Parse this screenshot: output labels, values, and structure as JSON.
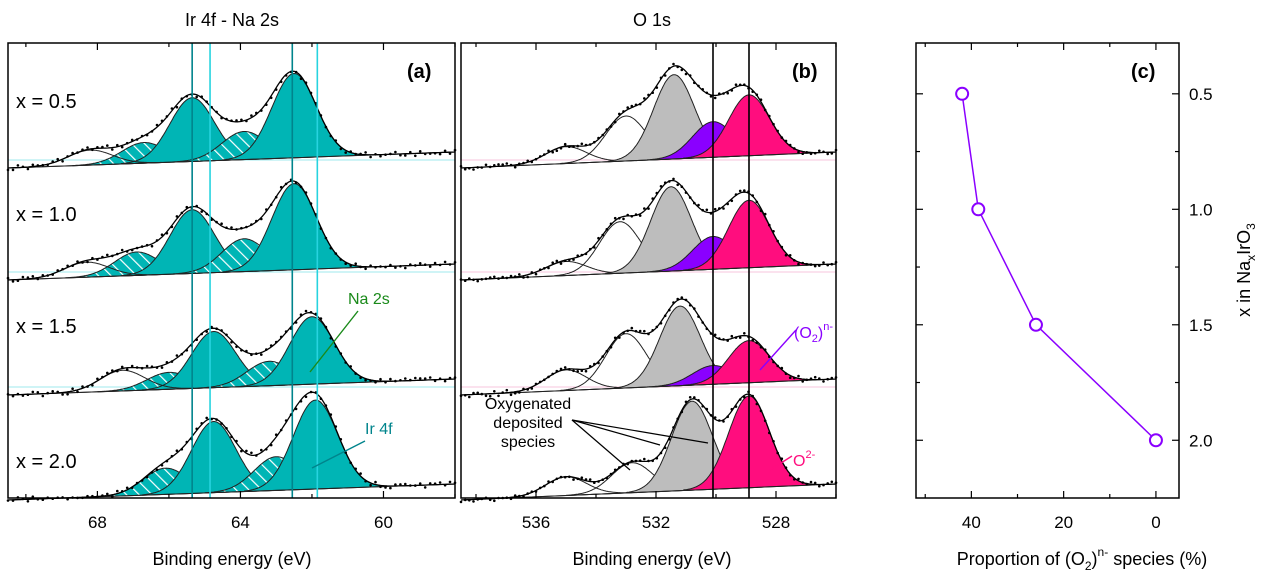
{
  "colors": {
    "ir": "#00b5b5",
    "o2minus": "#ff0d7e",
    "peroxo": "#8a00ff",
    "deposited": "#bdbdbd",
    "na": "#1a8a1a",
    "guide_cyan": "#27d3df",
    "guide_teal": "#00848c"
  },
  "chart_data": [
    {
      "type": "line",
      "panel_label": "(a)",
      "title": "Ir 4f - Na 2s",
      "xlabel": "Binding energy (eV)",
      "xlim": [
        70.5,
        58
      ],
      "xticks": [
        68,
        64,
        60
      ],
      "tick_labels": [
        "68",
        "64",
        "60"
      ],
      "guide_lines_eV": [
        65.35,
        64.85,
        62.55,
        61.85
      ],
      "series": [
        {
          "name": "x = 0.5",
          "peaks": [
            {
              "center": 66.7,
              "height": 0.22,
              "color": "ir",
              "hatched": true
            },
            {
              "center": 65.35,
              "height": 0.68,
              "color": "ir",
              "hatched": false
            },
            {
              "center": 63.9,
              "height": 0.3,
              "color": "ir",
              "hatched": true
            },
            {
              "center": 62.5,
              "height": 0.9,
              "color": "ir",
              "hatched": false
            },
            {
              "center": 68.2,
              "height": 0.16,
              "color": "none",
              "hatched": false
            }
          ]
        },
        {
          "name": "x = 1.0",
          "peaks": [
            {
              "center": 66.9,
              "height": 0.25,
              "color": "ir",
              "hatched": true
            },
            {
              "center": 65.35,
              "height": 0.68,
              "color": "ir",
              "hatched": false
            },
            {
              "center": 63.9,
              "height": 0.35,
              "color": "ir",
              "hatched": true
            },
            {
              "center": 62.5,
              "height": 0.92,
              "color": "ir",
              "hatched": false
            },
            {
              "center": 68.3,
              "height": 0.16,
              "color": "none",
              "hatched": false
            }
          ]
        },
        {
          "name": "x = 1.5",
          "peaks": [
            {
              "center": 66.0,
              "height": 0.18,
              "color": "ir",
              "hatched": true
            },
            {
              "center": 64.75,
              "height": 0.6,
              "color": "ir",
              "hatched": false
            },
            {
              "center": 63.2,
              "height": 0.26,
              "color": "ir",
              "hatched": true
            },
            {
              "center": 62.0,
              "height": 0.72,
              "color": "ir",
              "hatched": false
            },
            {
              "center": 67.3,
              "height": 0.22,
              "color": "none",
              "hatched": false
            }
          ]
        },
        {
          "name": "x = 2.0",
          "peaks": [
            {
              "center": 66.1,
              "height": 0.28,
              "color": "ir",
              "hatched": true
            },
            {
              "center": 64.75,
              "height": 0.76,
              "color": "ir",
              "hatched": false
            },
            {
              "center": 63.0,
              "height": 0.36,
              "color": "ir",
              "hatched": true
            },
            {
              "center": 61.9,
              "height": 0.95,
              "color": "ir",
              "hatched": false
            }
          ]
        }
      ],
      "annotations": [
        "Na 2s",
        "Ir 4f"
      ]
    },
    {
      "type": "line",
      "panel_label": "(b)",
      "title": "O 1s",
      "xlabel": "Binding energy (eV)",
      "xlim": [
        538.5,
        526
      ],
      "xticks": [
        536,
        532,
        528
      ],
      "tick_labels": [
        "536",
        "532",
        "528"
      ],
      "guide_lines_eV": [
        530.1,
        528.9
      ],
      "series": [
        {
          "name": "x = 0.5",
          "peaks": [
            {
              "center": 535.0,
              "height": 0.18,
              "color": "none"
            },
            {
              "center": 533.0,
              "height": 0.48,
              "color": "none"
            },
            {
              "center": 531.4,
              "height": 0.9,
              "color": "deposited"
            },
            {
              "center": 530.1,
              "height": 0.38,
              "color": "peroxo"
            },
            {
              "center": 528.9,
              "height": 0.65,
              "color": "o2minus"
            }
          ]
        },
        {
          "name": "x = 1.0",
          "peaks": [
            {
              "center": 535.0,
              "height": 0.15,
              "color": "none"
            },
            {
              "center": 533.2,
              "height": 0.55,
              "color": "none"
            },
            {
              "center": 531.5,
              "height": 0.9,
              "color": "deposited"
            },
            {
              "center": 530.1,
              "height": 0.35,
              "color": "peroxo"
            },
            {
              "center": 528.9,
              "height": 0.72,
              "color": "o2minus"
            }
          ]
        },
        {
          "name": "x = 1.5",
          "peaks": [
            {
              "center": 535.0,
              "height": 0.22,
              "color": "none"
            },
            {
              "center": 533.0,
              "height": 0.58,
              "color": "none"
            },
            {
              "center": 531.2,
              "height": 0.85,
              "color": "deposited"
            },
            {
              "center": 530.1,
              "height": 0.2,
              "color": "peroxo"
            },
            {
              "center": 528.9,
              "height": 0.45,
              "color": "o2minus"
            }
          ]
        },
        {
          "name": "x = 2.0",
          "peaks": [
            {
              "center": 535.0,
              "height": 0.2,
              "color": "none"
            },
            {
              "center": 532.8,
              "height": 0.32,
              "color": "none"
            },
            {
              "center": 530.8,
              "height": 0.95,
              "color": "deposited"
            },
            {
              "center": 528.9,
              "height": 0.98,
              "color": "o2minus"
            }
          ]
        }
      ],
      "annotations": [
        "Oxygenated",
        "deposited",
        "species",
        "(O2)n-",
        "O2-"
      ]
    },
    {
      "type": "scatter",
      "panel_label": "(c)",
      "xlabel": "Proportion of (O2)n- species (%)",
      "ylabel": "x in NaxIrO3",
      "xlim": [
        52,
        -5
      ],
      "ylim": [
        2.25,
        0.28
      ],
      "xticks": [
        40,
        20,
        0
      ],
      "tick_labels_x": [
        "40",
        "20",
        "0"
      ],
      "yticks": [
        0.5,
        1.0,
        1.5,
        2.0
      ],
      "tick_labels_y": [
        "0.5",
        "1.0",
        "1.5",
        "2.0"
      ],
      "points": [
        {
          "x": 42,
          "y": 0.5
        },
        {
          "x": 38.5,
          "y": 1.0
        },
        {
          "x": 26,
          "y": 1.5
        },
        {
          "x": 0,
          "y": 2.0
        }
      ]
    }
  ]
}
